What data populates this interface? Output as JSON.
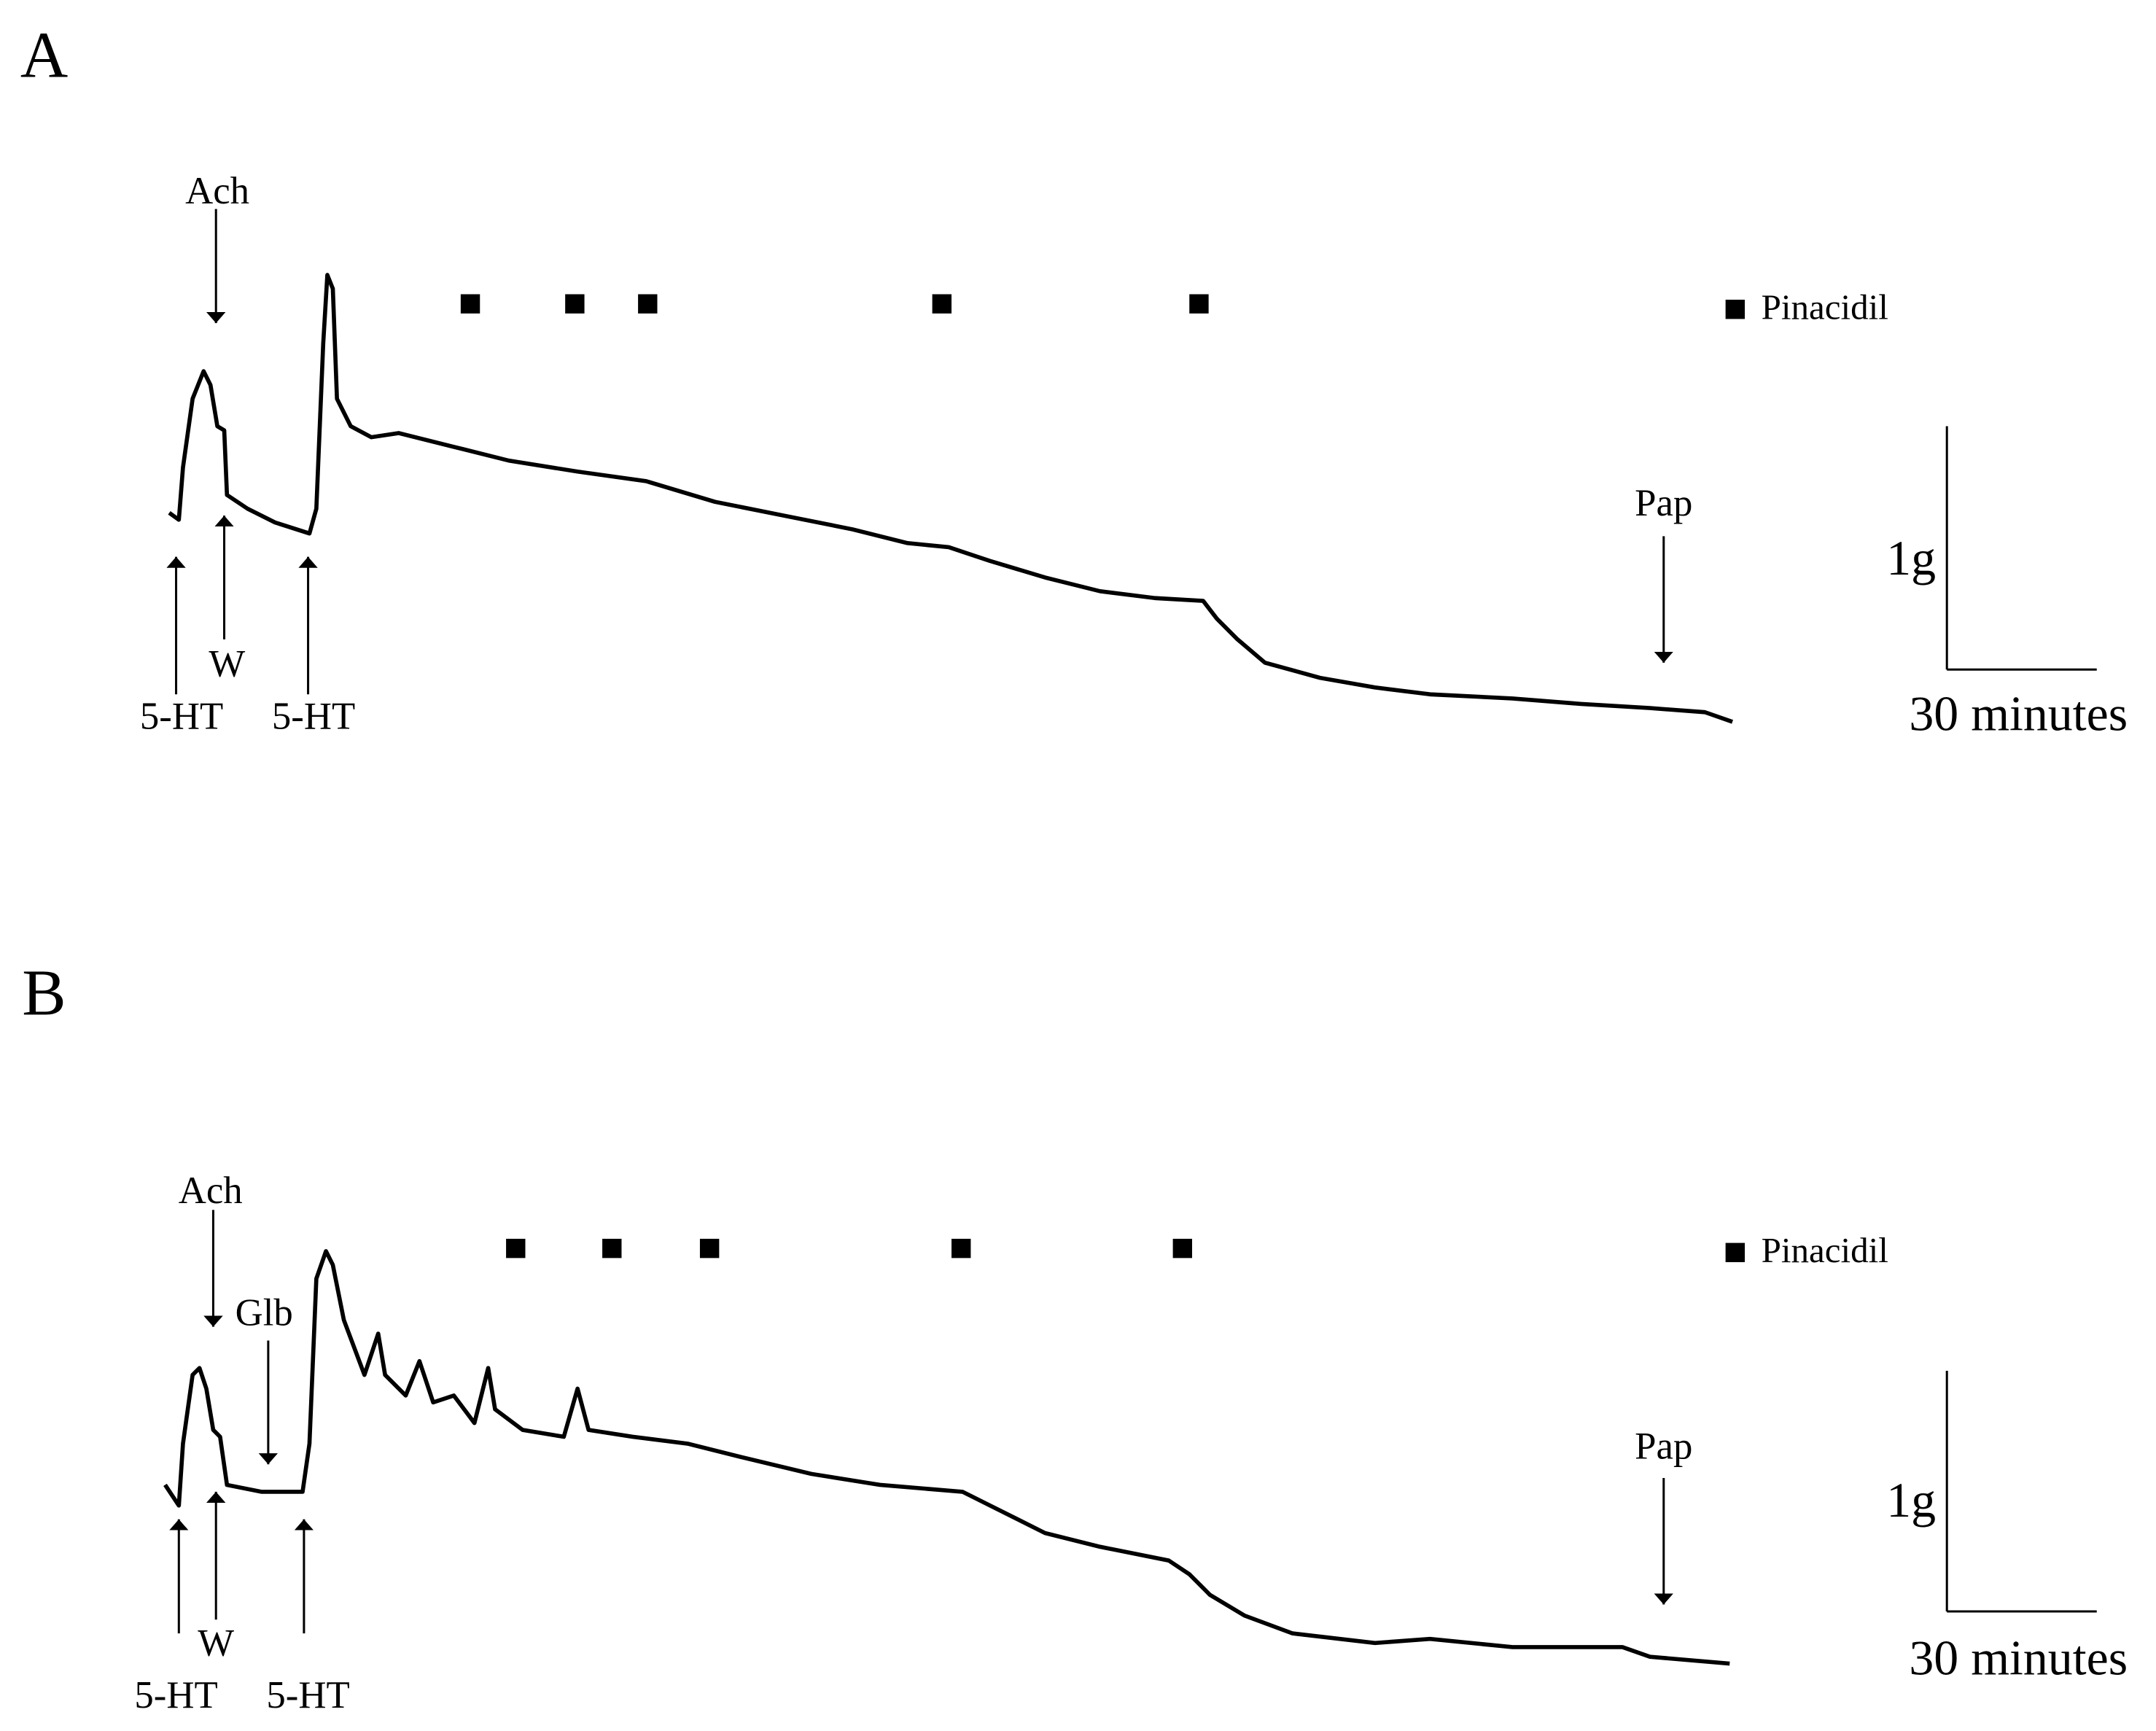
{
  "panels": [
    {
      "label": "A",
      "ach": "Ach",
      "w": "W",
      "ht_first": "5-HT",
      "ht_second": "5-HT",
      "pap": "Pap",
      "legend": "Pinacidil",
      "scale_y": "1g",
      "scale_x": "30 minutes"
    },
    {
      "label": "B",
      "ach": "Ach",
      "glb": "Glb",
      "w": "W",
      "ht_first": "5-HT",
      "ht_second": "5-HT",
      "pap": "Pap",
      "legend": "Pinacidil",
      "scale_y": "1g",
      "scale_x": "30 minutes"
    }
  ]
}
